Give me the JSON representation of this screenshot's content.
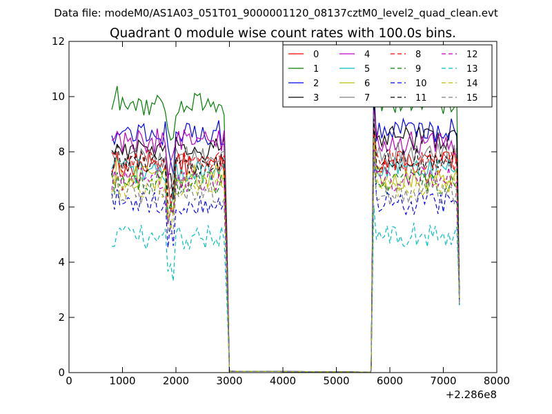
{
  "chart_data": {
    "type": "line",
    "suptitle": "Data file: modeM0/AS1A03_051T01_9000001120_08137cztM0_level2_quad_clean.evt",
    "title": "Quadrant 0 module wise count rates with 100.0s bins.",
    "xlabel": "",
    "ylabel": "",
    "xlim": [
      0,
      8000
    ],
    "ylim": [
      0,
      12
    ],
    "x_offset_label": "+2.286e8",
    "xticks": [
      0,
      1000,
      2000,
      3000,
      4000,
      5000,
      6000,
      7000,
      8000
    ],
    "xtick_labels": [
      "0",
      "1000",
      "2000",
      "3000",
      "4000",
      "5000",
      "6000",
      "7000",
      "8000"
    ],
    "yticks": [
      0,
      2,
      4,
      6,
      8,
      10,
      12
    ],
    "ytick_labels": [
      "0",
      "2",
      "4",
      "6",
      "8",
      "10",
      "12"
    ],
    "legend_position": "upper-right",
    "legend_columns": 4,
    "segment_a": {
      "x_start": 800,
      "x_end": 2900,
      "drop_end": 3000
    },
    "segment_b": {
      "x_start": 5650,
      "x_end": 7300
    },
    "series": [
      {
        "name": "0",
        "color": "#ff0000",
        "dash": "solid",
        "level_a": 7.5,
        "level_b": 7.6
      },
      {
        "name": "1",
        "color": "#008000",
        "dash": "solid",
        "level_a": 9.7,
        "level_b": 9.8
      },
      {
        "name": "2",
        "color": "#0000ff",
        "dash": "solid",
        "level_a": 8.7,
        "level_b": 8.8
      },
      {
        "name": "3",
        "color": "#000000",
        "dash": "solid",
        "level_a": 8.1,
        "level_b": 8.5
      },
      {
        "name": "4",
        "color": "#bf00bf",
        "dash": "solid",
        "level_a": 8.4,
        "level_b": 8.3
      },
      {
        "name": "5",
        "color": "#00bfbf",
        "dash": "solid",
        "level_a": 7.3,
        "level_b": 7.4
      },
      {
        "name": "6",
        "color": "#bfbf00",
        "dash": "solid",
        "level_a": 7.1,
        "level_b": 7.0
      },
      {
        "name": "7",
        "color": "#808080",
        "dash": "solid",
        "level_a": 7.8,
        "level_b": 7.9
      },
      {
        "name": "8",
        "color": "#ff0000",
        "dash": "dashed",
        "level_a": 7.7,
        "level_b": 7.6
      },
      {
        "name": "9",
        "color": "#008000",
        "dash": "dashed",
        "level_a": 6.9,
        "level_b": 6.9
      },
      {
        "name": "10",
        "color": "#0000ff",
        "dash": "dashed",
        "level_a": 6.1,
        "level_b": 6.1
      },
      {
        "name": "11",
        "color": "#000000",
        "dash": "dashed",
        "level_a": 7.6,
        "level_b": 7.7
      },
      {
        "name": "12",
        "color": "#bf00bf",
        "dash": "dashed",
        "level_a": 7.0,
        "level_b": 7.0
      },
      {
        "name": "13",
        "color": "#00bfbf",
        "dash": "dashed",
        "level_a": 4.9,
        "level_b": 5.0
      },
      {
        "name": "14",
        "color": "#bfbf00",
        "dash": "dashed",
        "level_a": 6.8,
        "level_b": 6.8
      },
      {
        "name": "15",
        "color": "#808080",
        "dash": "dashed",
        "level_a": 6.5,
        "level_b": 6.5
      }
    ]
  }
}
